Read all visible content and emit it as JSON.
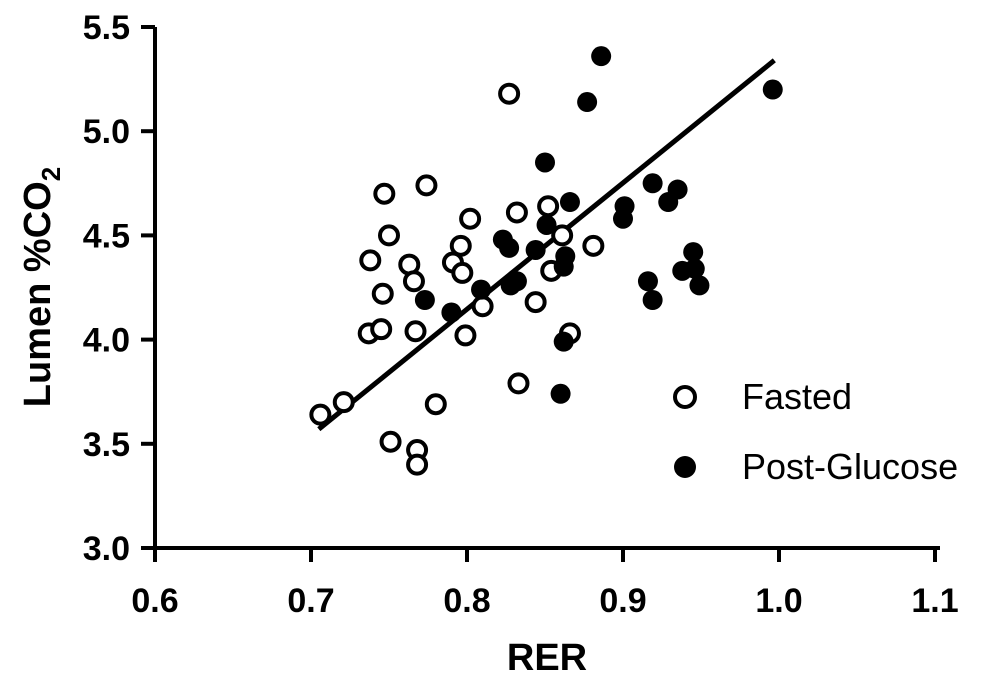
{
  "chart_data": {
    "type": "scatter",
    "xlabel": "RER",
    "ylabel": {
      "main": "Lumen %CO",
      "subscript": "2"
    },
    "xlim": [
      0.6,
      1.1
    ],
    "ylim": [
      3.0,
      5.5
    ],
    "xticks": [
      "0.6",
      "0.7",
      "0.8",
      "0.9",
      "1.0",
      "1.1"
    ],
    "yticks": [
      "3.0",
      "3.5",
      "4.0",
      "4.5",
      "5.0",
      "5.5"
    ],
    "legend_position": "right",
    "series": [
      {
        "name": "Fasted",
        "marker": "open-circle",
        "color": "#000000",
        "points": [
          [
            0.706,
            3.64
          ],
          [
            0.721,
            3.7
          ],
          [
            0.737,
            4.03
          ],
          [
            0.738,
            4.38
          ],
          [
            0.745,
            4.05
          ],
          [
            0.746,
            4.22
          ],
          [
            0.747,
            4.7
          ],
          [
            0.75,
            4.5
          ],
          [
            0.751,
            3.51
          ],
          [
            0.763,
            4.36
          ],
          [
            0.766,
            4.28
          ],
          [
            0.767,
            4.04
          ],
          [
            0.768,
            3.47
          ],
          [
            0.768,
            3.4
          ],
          [
            0.774,
            4.74
          ],
          [
            0.78,
            3.69
          ],
          [
            0.791,
            4.37
          ],
          [
            0.796,
            4.45
          ],
          [
            0.797,
            4.32
          ],
          [
            0.799,
            4.02
          ],
          [
            0.802,
            4.58
          ],
          [
            0.81,
            4.16
          ],
          [
            0.827,
            5.18
          ],
          [
            0.832,
            4.61
          ],
          [
            0.833,
            3.79
          ],
          [
            0.844,
            4.18
          ],
          [
            0.852,
            4.64
          ],
          [
            0.854,
            4.33
          ],
          [
            0.861,
            4.5
          ],
          [
            0.866,
            4.03
          ],
          [
            0.881,
            4.45
          ]
        ]
      },
      {
        "name": "Post-Glucose",
        "marker": "filled-circle",
        "color": "#000000",
        "points": [
          [
            0.773,
            4.19
          ],
          [
            0.79,
            4.13
          ],
          [
            0.809,
            4.24
          ],
          [
            0.823,
            4.48
          ],
          [
            0.827,
            4.44
          ],
          [
            0.828,
            4.26
          ],
          [
            0.832,
            4.28
          ],
          [
            0.844,
            4.43
          ],
          [
            0.85,
            4.85
          ],
          [
            0.851,
            4.55
          ],
          [
            0.86,
            3.74
          ],
          [
            0.862,
            3.99
          ],
          [
            0.862,
            4.35
          ],
          [
            0.863,
            4.4
          ],
          [
            0.866,
            4.66
          ],
          [
            0.877,
            5.14
          ],
          [
            0.886,
            5.36
          ],
          [
            0.9,
            4.58
          ],
          [
            0.901,
            4.64
          ],
          [
            0.916,
            4.28
          ],
          [
            0.919,
            4.75
          ],
          [
            0.919,
            4.19
          ],
          [
            0.929,
            4.66
          ],
          [
            0.935,
            4.72
          ],
          [
            0.938,
            4.33
          ],
          [
            0.945,
            4.42
          ],
          [
            0.946,
            4.34
          ],
          [
            0.949,
            4.26
          ],
          [
            0.996,
            5.2
          ]
        ]
      }
    ],
    "fit_line": {
      "x": [
        0.705,
        0.997
      ],
      "y": [
        3.57,
        5.34
      ]
    }
  }
}
